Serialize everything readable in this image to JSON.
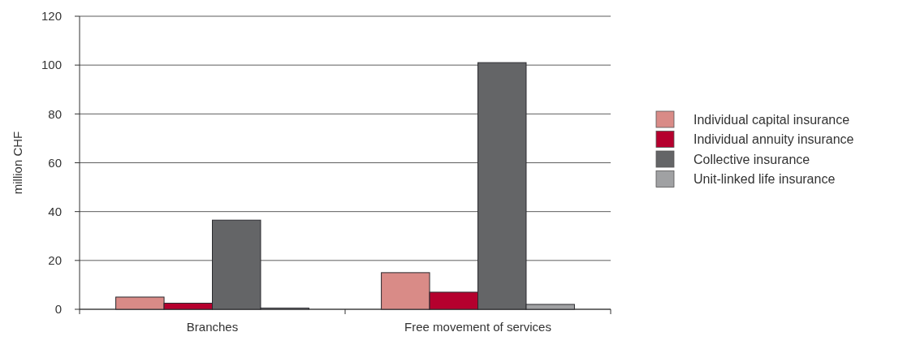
{
  "chart_data": {
    "type": "bar",
    "ylabel": "million CHF",
    "categories": [
      "Branches",
      "Free movement of services"
    ],
    "series": [
      {
        "name": "Individual capital insurance",
        "color": "#d98b87",
        "values": [
          5,
          15
        ]
      },
      {
        "name": "Individual annuity insurance",
        "color": "#b5002e",
        "values": [
          2.5,
          7
        ]
      },
      {
        "name": "Collective insurance",
        "color": "#646567",
        "values": [
          36.5,
          101
        ]
      },
      {
        "name": "Unit-linked life insurance",
        "color": "#a0a1a3",
        "values": [
          0.5,
          2
        ]
      }
    ],
    "ylim": [
      0,
      120
    ],
    "yticks": [
      0,
      20,
      40,
      60,
      80,
      100,
      120
    ],
    "grid": "y",
    "legend": "right"
  }
}
